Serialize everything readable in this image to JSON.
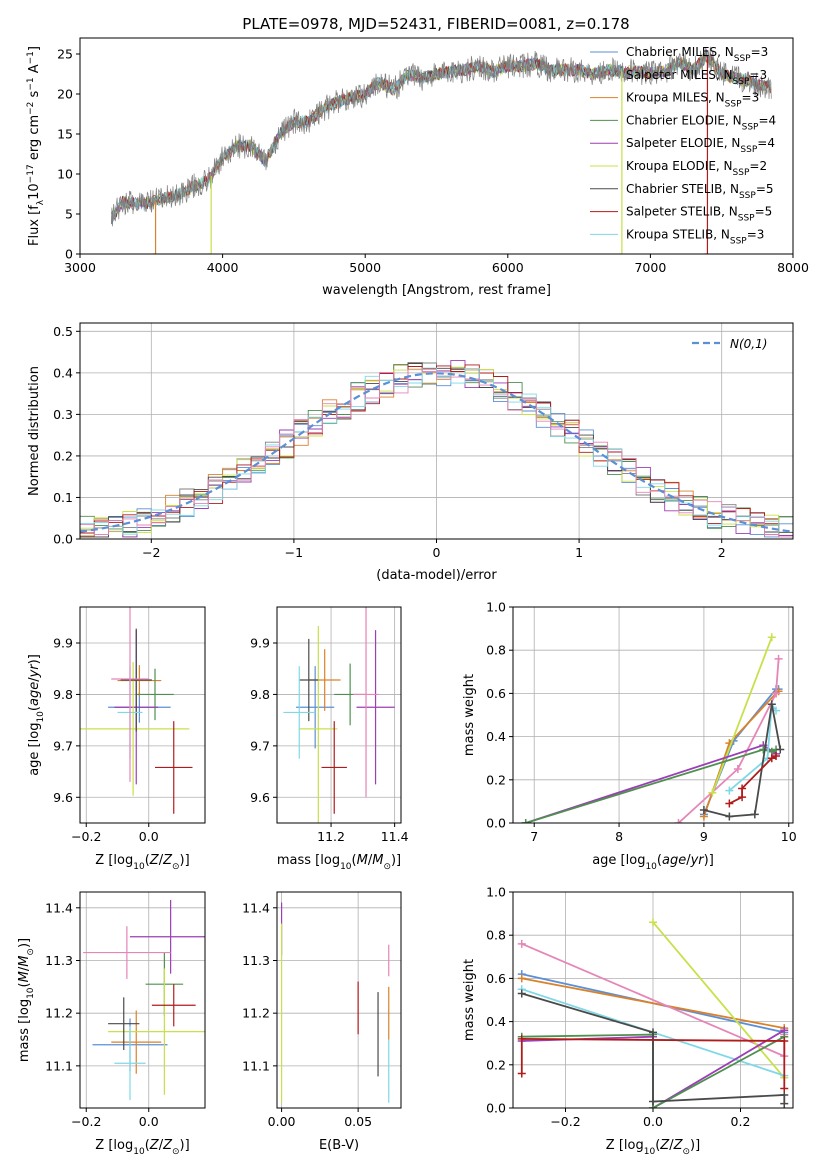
{
  "title": "PLATE=0978, MJD=52431, FIBERID=0081, z=0.178",
  "colors": {
    "Chabrier MILES": "#5b8fd6",
    "Salpeter MILES": "#808080",
    "Kroupa MILES": "#d9822b",
    "Chabrier ELODIE": "#4f8f4f",
    "Salpeter ELODIE": "#9b3fb5",
    "Kroupa ELODIE": "#c8e04a",
    "Chabrier STELIB": "#4a4a4a",
    "Salpeter STELIB": "#b01c1c",
    "Kroupa STELIB": "#7fd8e6",
    "pink": "#e585b8",
    "normal": "#5b8fd6"
  },
  "chart_data": [
    {
      "type": "line",
      "xlabel": "wavelength [Angstrom, rest frame]",
      "ylabel": "Flux [f_λ 10^-17 erg cm^-2 s^-1 A^-1]",
      "xlim": [
        3000,
        8000
      ],
      "ylim": [
        0,
        27
      ],
      "xticks": [
        3000,
        4000,
        5000,
        6000,
        7000,
        8000
      ],
      "yticks": [
        0,
        5,
        10,
        15,
        20,
        25
      ],
      "legend_position": "upper-right",
      "legend": [
        {
          "label": "Chabrier MILES, N",
          "sub": "SSP",
          "suffix": "=3",
          "color": "#5b8fd6"
        },
        {
          "label": "Salpeter MILES, N",
          "sub": "SSP",
          "suffix": "=3",
          "color": "#808080"
        },
        {
          "label": "Kroupa MILES, N",
          "sub": "SSP",
          "suffix": "=3",
          "color": "#d9822b"
        },
        {
          "label": "Chabrier ELODIE, N",
          "sub": "SSP",
          "suffix": "=4",
          "color": "#4f8f4f"
        },
        {
          "label": "Salpeter ELODIE, N",
          "sub": "SSP",
          "suffix": "=4",
          "color": "#9b3fb5"
        },
        {
          "label": "Kroupa ELODIE, N",
          "sub": "SSP",
          "suffix": "=2",
          "color": "#c8e04a"
        },
        {
          "label": "Chabrier STELIB, N",
          "sub": "SSP",
          "suffix": "=5",
          "color": "#4a4a4a"
        },
        {
          "label": "Salpeter STELIB, N",
          "sub": "SSP",
          "suffix": "=5",
          "color": "#b01c1c"
        },
        {
          "label": "Kroupa STELIB, N",
          "sub": "SSP",
          "suffix": "=3",
          "color": "#7fd8e6"
        }
      ],
      "continuum": [
        [
          3220,
          4.5
        ],
        [
          3300,
          6.5
        ],
        [
          3400,
          6.2
        ],
        [
          3500,
          6.5
        ],
        [
          3600,
          7.0
        ],
        [
          3700,
          7.5
        ],
        [
          3800,
          8.5
        ],
        [
          3900,
          9.2
        ],
        [
          4000,
          12.0
        ],
        [
          4100,
          13.5
        ],
        [
          4200,
          13.5
        ],
        [
          4300,
          11.5
        ],
        [
          4400,
          15.0
        ],
        [
          4500,
          16.5
        ],
        [
          4600,
          16.5
        ],
        [
          4700,
          18.0
        ],
        [
          4800,
          19.0
        ],
        [
          4900,
          19.5
        ],
        [
          5000,
          20.0
        ],
        [
          5100,
          21.5
        ],
        [
          5200,
          20.5
        ],
        [
          5300,
          22.5
        ],
        [
          5400,
          22.0
        ],
        [
          5500,
          22.5
        ],
        [
          5600,
          22.8
        ],
        [
          5700,
          23.0
        ],
        [
          5800,
          23.5
        ],
        [
          5900,
          22.8
        ],
        [
          6000,
          23.5
        ],
        [
          6100,
          23.5
        ],
        [
          6200,
          23.8
        ],
        [
          6300,
          23.0
        ],
        [
          6400,
          23.0
        ],
        [
          6500,
          23.0
        ],
        [
          6600,
          22.5
        ],
        [
          6700,
          23.0
        ],
        [
          6800,
          22.8
        ],
        [
          6900,
          22.8
        ],
        [
          7000,
          22.6
        ],
        [
          7100,
          22.8
        ],
        [
          7200,
          24.0
        ],
        [
          7300,
          23.0
        ],
        [
          7400,
          24.8
        ],
        [
          7500,
          22.5
        ],
        [
          7600,
          22.0
        ],
        [
          7700,
          21.5
        ],
        [
          7800,
          21.0
        ],
        [
          7850,
          20.8
        ]
      ],
      "dropouts": [
        {
          "x": 3530,
          "color": "#d9822b"
        },
        {
          "x": 3920,
          "color": "#c8e04a"
        },
        {
          "x": 6800,
          "color": "#c8e04a"
        },
        {
          "x": 7400,
          "color": "#b01c1c"
        }
      ]
    },
    {
      "type": "step-histogram",
      "xlabel": "(data-model)/error",
      "ylabel": "Normed distribution",
      "xlim": [
        -2.5,
        2.5
      ],
      "ylim": [
        0,
        0.52
      ],
      "xticks": [
        -2,
        -1,
        0,
        1,
        2
      ],
      "yticks": [
        0.0,
        0.1,
        0.2,
        0.3,
        0.4,
        0.5
      ],
      "bin_width": 0.1,
      "legend": "N(0,1)",
      "normal": {
        "mean": 0,
        "sigma": 1
      },
      "series_colors": [
        "#5b8fd6",
        "#808080",
        "#d9822b",
        "#4f8f4f",
        "#9b3fb5",
        "#c8e04a",
        "#4a4a4a",
        "#b01c1c",
        "#7fd8e6",
        "#e585b8"
      ]
    },
    {
      "type": "scatter-errorbar",
      "xlabel": "Z [log10(Z/Z⊙)]",
      "ylabel": "age [log10(age/yr)]",
      "xlim": [
        -0.22,
        0.18
      ],
      "ylim": [
        9.55,
        9.97
      ],
      "xticks": [
        -0.2,
        0.0
      ],
      "yticks": [
        9.6,
        9.7,
        9.8,
        9.9
      ],
      "points": [
        {
          "x": -0.03,
          "y": 9.775,
          "xerr": 0.1,
          "yerr": 0.03,
          "color": "#5b8fd6"
        },
        {
          "x": -0.03,
          "y": 9.827,
          "xerr": 0.07,
          "yerr": 0.03,
          "color": "#d9822b"
        },
        {
          "x": 0.02,
          "y": 9.8,
          "xerr": 0.06,
          "yerr": 0.05,
          "color": "#4f8f4f"
        },
        {
          "x": -0.04,
          "y": 9.775,
          "xerr": 0.07,
          "yerr": 0.15,
          "color": "#9b3fb5"
        },
        {
          "x": -0.05,
          "y": 9.733,
          "xerr": 0.18,
          "yerr": 0.13,
          "color": "#c8e04a"
        },
        {
          "x": -0.04,
          "y": 9.828,
          "xerr": 0.05,
          "yerr": 0.1,
          "color": "#4a4a4a"
        },
        {
          "x": 0.08,
          "y": 9.658,
          "xerr": 0.06,
          "yerr": 0.09,
          "color": "#b01c1c"
        },
        {
          "x": -0.06,
          "y": 9.765,
          "xerr": 0.04,
          "yerr": 0.09,
          "color": "#7fd8e6"
        },
        {
          "x": -0.06,
          "y": 9.83,
          "xerr": 0.06,
          "yerr": 0.2,
          "color": "#e585b8"
        }
      ]
    },
    {
      "type": "scatter-errorbar",
      "xlabel": "mass [log10(M/M⊙)]",
      "ylabel": "",
      "xlim": [
        11.03,
        11.42
      ],
      "ylim": [
        9.55,
        9.97
      ],
      "xticks": [
        11.2,
        11.4
      ],
      "yticks": [
        9.6,
        9.7,
        9.8,
        9.9
      ],
      "points": [
        {
          "x": 11.15,
          "y": 9.775,
          "xerr": 0.06,
          "yerr": 0.08,
          "color": "#5b8fd6"
        },
        {
          "x": 11.18,
          "y": 9.828,
          "xerr": 0.05,
          "yerr": 0.06,
          "color": "#d9822b"
        },
        {
          "x": 11.26,
          "y": 9.8,
          "xerr": 0.05,
          "yerr": 0.06,
          "color": "#4f8f4f"
        },
        {
          "x": 11.34,
          "y": 9.775,
          "xerr": 0.06,
          "yerr": 0.15,
          "color": "#9b3fb5"
        },
        {
          "x": 11.16,
          "y": 9.733,
          "xerr": 0.06,
          "yerr": 0.2,
          "color": "#c8e04a"
        },
        {
          "x": 11.13,
          "y": 9.828,
          "xerr": 0.03,
          "yerr": 0.08,
          "color": "#4a4a4a"
        },
        {
          "x": 11.21,
          "y": 9.658,
          "xerr": 0.04,
          "yerr": 0.09,
          "color": "#b01c1c"
        },
        {
          "x": 11.1,
          "y": 9.765,
          "xerr": 0.05,
          "yerr": 0.09,
          "color": "#7fd8e6"
        },
        {
          "x": 11.31,
          "y": 9.8,
          "xerr": 0.04,
          "yerr": 0.2,
          "color": "#e585b8"
        }
      ]
    },
    {
      "type": "line",
      "xlabel": "age [log10(age/yr)]",
      "ylabel": "mass weight",
      "xlim": [
        6.75,
        10.05
      ],
      "ylim": [
        0,
        1
      ],
      "xticks": [
        7,
        8,
        9,
        10
      ],
      "yticks": [
        0.0,
        0.2,
        0.4,
        0.6,
        0.8,
        1.0
      ],
      "series": [
        {
          "color": "#5b8fd6",
          "x": [
            9.0,
            9.35,
            9.85,
            9.88
          ],
          "y": [
            0.04,
            0.38,
            0.62,
            0.62
          ]
        },
        {
          "color": "#d9822b",
          "x": [
            9.0,
            9.3,
            9.85,
            9.88
          ],
          "y": [
            0.03,
            0.37,
            0.6,
            0.61
          ]
        },
        {
          "color": "#e585b8",
          "x": [
            8.7,
            9.4,
            9.85,
            9.88
          ],
          "y": [
            0.0,
            0.25,
            0.6,
            0.76
          ]
        },
        {
          "color": "#c8e04a",
          "x": [
            9.1,
            9.8
          ],
          "y": [
            0.14,
            0.86
          ]
        },
        {
          "color": "#9b3fb5",
          "x": [
            6.9,
            9.7,
            9.85
          ],
          "y": [
            0.0,
            0.36,
            0.32
          ]
        },
        {
          "color": "#4f8f4f",
          "x": [
            6.9,
            9.7,
            9.8,
            9.85
          ],
          "y": [
            0.0,
            0.34,
            0.33,
            0.34
          ]
        },
        {
          "color": "#7fd8e6",
          "x": [
            9.3,
            9.75,
            9.8,
            9.85
          ],
          "y": [
            0.15,
            0.3,
            0.55,
            0.52
          ]
        },
        {
          "color": "#4a4a4a",
          "x": [
            9.0,
            9.3,
            9.6,
            9.8,
            9.9
          ],
          "y": [
            0.06,
            0.03,
            0.04,
            0.55,
            0.34
          ]
        },
        {
          "color": "#b01c1c",
          "x": [
            9.3,
            9.45,
            9.45,
            9.8,
            9.85
          ],
          "y": [
            0.09,
            0.12,
            0.16,
            0.3,
            0.31
          ]
        }
      ]
    },
    {
      "type": "scatter-errorbar",
      "xlabel": "Z [log10(Z/Z⊙)]",
      "ylabel": "mass [log10(M/M⊙)]",
      "xlim": [
        -0.22,
        0.18
      ],
      "ylim": [
        11.02,
        11.43
      ],
      "xticks": [
        -0.2,
        0.0
      ],
      "yticks": [
        11.1,
        11.2,
        11.3,
        11.4
      ],
      "points": [
        {
          "x": -0.06,
          "y": 11.14,
          "xerr": 0.12,
          "yerr": 0.05,
          "color": "#5b8fd6"
        },
        {
          "x": -0.04,
          "y": 11.145,
          "xerr": 0.08,
          "yerr": 0.06,
          "color": "#d9822b"
        },
        {
          "x": 0.05,
          "y": 11.255,
          "xerr": 0.06,
          "yerr": 0.06,
          "color": "#4f8f4f"
        },
        {
          "x": 0.07,
          "y": 11.345,
          "xerr": 0.13,
          "yerr": 0.07,
          "color": "#9b3fb5"
        },
        {
          "x": 0.05,
          "y": 11.165,
          "xerr": 0.18,
          "yerr": 0.12,
          "color": "#c8e04a"
        },
        {
          "x": -0.08,
          "y": 11.18,
          "xerr": 0.05,
          "yerr": 0.05,
          "color": "#4a4a4a"
        },
        {
          "x": 0.08,
          "y": 11.215,
          "xerr": 0.07,
          "yerr": 0.04,
          "color": "#b01c1c"
        },
        {
          "x": -0.06,
          "y": 11.105,
          "xerr": 0.05,
          "yerr": 0.07,
          "color": "#7fd8e6"
        },
        {
          "x": -0.07,
          "y": 11.315,
          "xerr": 0.14,
          "yerr": 0.05,
          "color": "#e585b8"
        }
      ]
    },
    {
      "type": "scatter-errorbar",
      "xlabel": "E(B-V)",
      "ylabel": "",
      "xlim": [
        -0.003,
        0.078
      ],
      "ylim": [
        11.02,
        11.43
      ],
      "xticks": [
        0.0,
        0.05
      ],
      "yticks": [
        11.1,
        11.2,
        11.3,
        11.4
      ],
      "points": [
        {
          "x": 0.0,
          "y": 11.36,
          "xerr": 0.0,
          "yerr": 0.05,
          "color": "#9b3fb5"
        },
        {
          "x": 0.0,
          "y": 11.2,
          "xerr": 0.0,
          "yerr": 0.17,
          "color": "#c8e04a"
        },
        {
          "x": 0.05,
          "y": 11.21,
          "xerr": 0.0,
          "yerr": 0.05,
          "color": "#b01c1c"
        },
        {
          "x": 0.063,
          "y": 11.16,
          "xerr": 0.0,
          "yerr": 0.08,
          "color": "#4a4a4a"
        },
        {
          "x": 0.07,
          "y": 11.2,
          "xerr": 0.0,
          "yerr": 0.05,
          "color": "#d9822b"
        },
        {
          "x": 0.07,
          "y": 11.3,
          "xerr": 0.0,
          "yerr": 0.03,
          "color": "#e585b8"
        },
        {
          "x": 0.07,
          "y": 11.09,
          "xerr": 0.0,
          "yerr": 0.06,
          "color": "#7fd8e6"
        }
      ]
    },
    {
      "type": "line",
      "xlabel": "Z [log10(Z/Z⊙)]",
      "ylabel": "mass weight",
      "xlim": [
        -0.32,
        0.32
      ],
      "ylim": [
        0,
        1
      ],
      "xticks": [
        -0.2,
        0.0,
        0.2
      ],
      "yticks": [
        0.0,
        0.2,
        0.4,
        0.6,
        0.8,
        1.0
      ],
      "series": [
        {
          "color": "#5b8fd6",
          "x": [
            -0.3,
            0.3
          ],
          "y": [
            0.62,
            0.35
          ]
        },
        {
          "color": "#d9822b",
          "x": [
            -0.3,
            0.3
          ],
          "y": [
            0.6,
            0.37
          ]
        },
        {
          "color": "#e585b8",
          "x": [
            -0.3,
            0.3,
            0.3
          ],
          "y": [
            0.76,
            0.24,
            0.34
          ]
        },
        {
          "color": "#c8e04a",
          "x": [
            0.0,
            0.3
          ],
          "y": [
            0.86,
            0.14
          ]
        },
        {
          "color": "#7fd8e6",
          "x": [
            -0.3,
            0.3
          ],
          "y": [
            0.55,
            0.15
          ]
        },
        {
          "color": "#9b3fb5",
          "x": [
            -0.3,
            0.0,
            0.0,
            0.3
          ],
          "y": [
            0.31,
            0.33,
            0.0,
            0.36
          ]
        },
        {
          "color": "#4f8f4f",
          "x": [
            -0.3,
            0.0,
            0.0,
            0.3
          ],
          "y": [
            0.33,
            0.34,
            0.0,
            0.33
          ]
        },
        {
          "color": "#4a4a4a",
          "x": [
            -0.3,
            0.0,
            0.0,
            0.3,
            0.3
          ],
          "y": [
            0.53,
            0.35,
            0.03,
            0.06,
            0.02
          ]
        },
        {
          "color": "#b01c1c",
          "x": [
            -0.3,
            -0.3,
            0.3,
            0.3
          ],
          "y": [
            0.16,
            0.32,
            0.31,
            0.09
          ]
        }
      ]
    }
  ]
}
